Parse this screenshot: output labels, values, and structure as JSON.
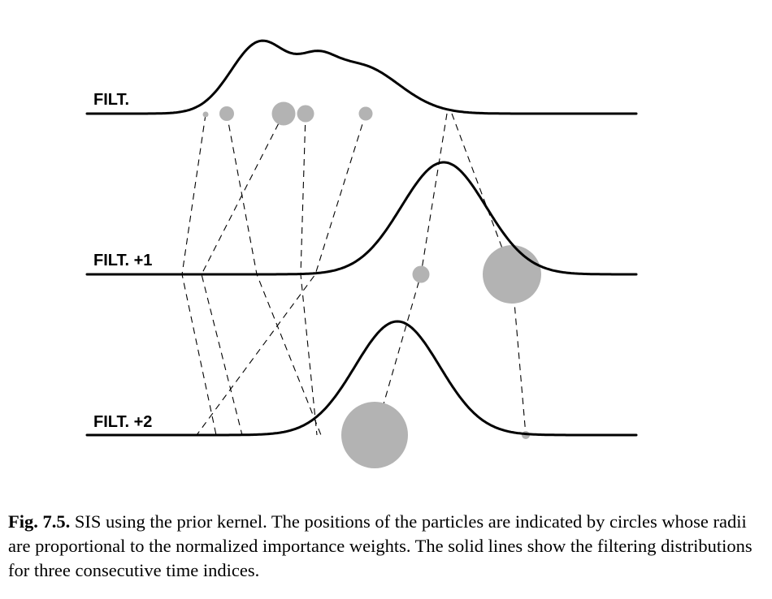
{
  "rows": [
    {
      "label": "FILT."
    },
    {
      "label": "FILT. +1"
    },
    {
      "label": "FILT. +2"
    }
  ],
  "caption": {
    "number": "Fig. 7.5.",
    "text": " SIS using the prior kernel. The positions of the particles are indicated by circles whose radii are proportional to the normalized importance weights. The solid lines show the filtering distributions for three consecutive time indices."
  },
  "colors": {
    "particle": "#b3b3b3",
    "curve": "#000000",
    "dashed": "#000000"
  }
}
